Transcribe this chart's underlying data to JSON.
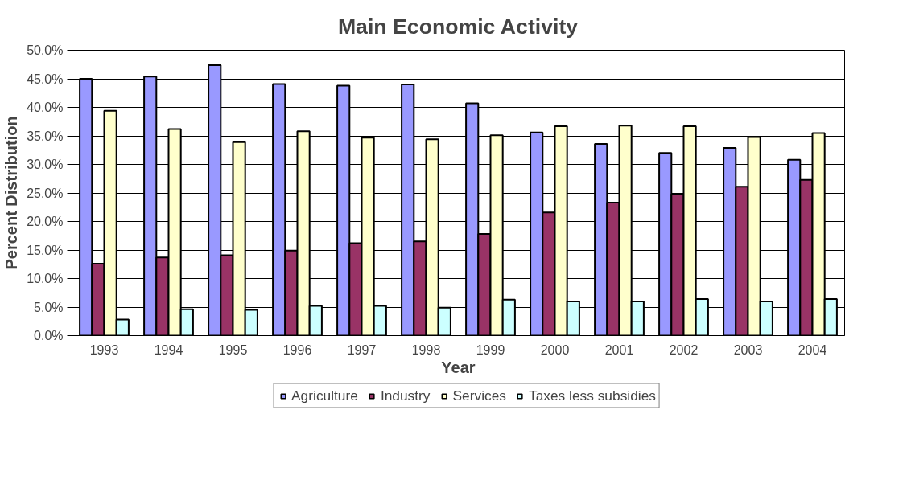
{
  "chart_data": {
    "type": "bar",
    "title": "Main Economic Activity",
    "xlabel": "Year",
    "ylabel": "Percent Distribution",
    "categories": [
      "1993",
      "1994",
      "1995",
      "1996",
      "1997",
      "1998",
      "1999",
      "2000",
      "2001",
      "2002",
      "2003",
      "2004"
    ],
    "series": [
      {
        "name": "Agriculture",
        "color": "#9999ff",
        "values": [
          45.0,
          45.4,
          47.4,
          44.1,
          43.8,
          44.0,
          40.7,
          35.6,
          33.6,
          32.0,
          32.9,
          30.8
        ]
      },
      {
        "name": "Industry",
        "color": "#993366",
        "values": [
          12.6,
          13.7,
          14.1,
          14.9,
          16.2,
          16.5,
          17.8,
          21.6,
          23.3,
          24.8,
          26.1,
          27.3
        ]
      },
      {
        "name": "Services",
        "color": "#ffffcc",
        "values": [
          39.4,
          36.2,
          33.9,
          35.8,
          34.7,
          34.4,
          35.1,
          36.7,
          36.8,
          36.7,
          34.8,
          35.5
        ]
      },
      {
        "name": "Taxes less subsidies",
        "color": "#ccffff",
        "values": [
          2.8,
          4.6,
          4.5,
          5.2,
          5.2,
          4.9,
          6.3,
          6.0,
          6.0,
          6.4,
          6.0,
          6.4
        ]
      }
    ],
    "ylim": [
      0,
      50
    ],
    "yticks": [
      {
        "value": 0,
        "label": "0.0%"
      },
      {
        "value": 5,
        "label": "5.0%"
      },
      {
        "value": 10,
        "label": "10.0%"
      },
      {
        "value": 15,
        "label": "15.0%"
      },
      {
        "value": 20,
        "label": "20.0%"
      },
      {
        "value": 25,
        "label": "25.0%"
      },
      {
        "value": 30,
        "label": "30.0%"
      },
      {
        "value": 35,
        "label": "35.0%"
      },
      {
        "value": 40,
        "label": "40.0%"
      },
      {
        "value": 45,
        "label": "45.0%"
      },
      {
        "value": 50,
        "label": "50.0%"
      }
    ],
    "grid": "y",
    "legend": "bottom"
  }
}
